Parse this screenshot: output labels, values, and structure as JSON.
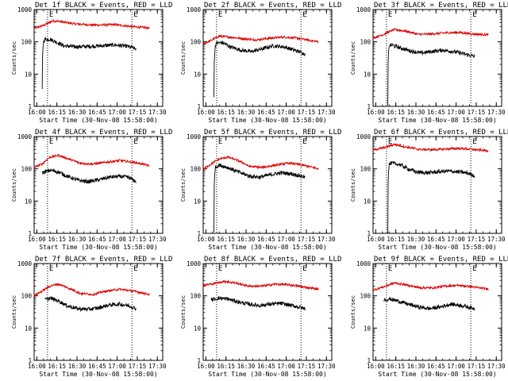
{
  "chart_data": [
    {
      "type": "line",
      "detector": "1f",
      "title": "Det 1f BLACK = Events, RED = LLD",
      "xlabel": "Start Time (30-Nov-08 15:58:00)",
      "ylabel": "Counts/sec",
      "x_ticks": [
        "16:00",
        "16:15",
        "16:30",
        "16:45",
        "17:00",
        "17:15",
        "17:30"
      ],
      "y_ticks": [
        "1",
        "10",
        "100",
        "1000"
      ],
      "xlim_min": [
        0,
        96
      ],
      "ylim": [
        1,
        1000
      ],
      "yscale": "log",
      "attenuator_marks": [
        {
          "label": "E",
          "t": 10
        },
        {
          "label": "E",
          "t": 73
        }
      ],
      "series": [
        {
          "name": "LLD",
          "color": "#dd0000",
          "start": 0,
          "end": 86,
          "x": [
            0,
            8,
            14,
            20,
            30,
            45,
            60,
            75,
            86
          ],
          "y": [
            260,
            330,
            450,
            420,
            360,
            330,
            340,
            290,
            270
          ]
        },
        {
          "name": "Events",
          "color": "#000000",
          "start": 6,
          "end": 76,
          "x": [
            6,
            7,
            8,
            12,
            16,
            22,
            30,
            40,
            50,
            60,
            70,
            76
          ],
          "y": [
            3,
            100,
            120,
            120,
            100,
            75,
            70,
            72,
            75,
            80,
            72,
            60
          ]
        }
      ]
    },
    {
      "type": "line",
      "detector": "2f",
      "title": "Det 2f BLACK = Events, RED = LLD",
      "xlabel": "Start Time (30-Nov-08 15:58:00)",
      "ylabel": "Counts/sec",
      "x_ticks": [
        "16:00",
        "16:15",
        "16:30",
        "16:45",
        "17:00",
        "17:15",
        "17:30"
      ],
      "y_ticks": [
        "1",
        "10",
        "100",
        "1000"
      ],
      "xlim_min": [
        0,
        96
      ],
      "ylim": [
        1,
        1000
      ],
      "yscale": "log",
      "attenuator_marks": [
        {
          "label": "E",
          "t": 10
        },
        {
          "label": "E",
          "t": 73
        }
      ],
      "series": [
        {
          "name": "LLD",
          "color": "#dd0000",
          "start": 0,
          "end": 86,
          "x": [
            0,
            6,
            12,
            20,
            30,
            40,
            50,
            60,
            70,
            80,
            86
          ],
          "y": [
            85,
            110,
            150,
            140,
            125,
            115,
            130,
            140,
            130,
            110,
            100
          ]
        },
        {
          "name": "Events",
          "color": "#000000",
          "start": 8,
          "end": 76,
          "x": [
            8,
            9,
            10,
            14,
            20,
            28,
            36,
            44,
            52,
            60,
            68,
            76
          ],
          "y": [
            2,
            75,
            90,
            95,
            70,
            55,
            50,
            60,
            75,
            70,
            55,
            42
          ]
        }
      ]
    },
    {
      "type": "line",
      "detector": "3f",
      "title": "Det 3f BLACK = Events, RED = LLD",
      "xlabel": "Start Time (30-Nov-08 15:58:00)",
      "ylabel": "Counts/sec",
      "x_ticks": [
        "16:00",
        "16:15",
        "16:30",
        "16:45",
        "17:00",
        "17:15",
        "17:30"
      ],
      "y_ticks": [
        "1",
        "10",
        "100",
        "1000"
      ],
      "xlim_min": [
        0,
        96
      ],
      "ylim": [
        1,
        1000
      ],
      "yscale": "log",
      "attenuator_marks": [
        {
          "label": "E",
          "t": 10
        },
        {
          "label": "E",
          "t": 73
        }
      ],
      "series": [
        {
          "name": "LLD",
          "color": "#dd0000",
          "start": 0,
          "end": 86,
          "x": [
            0,
            8,
            16,
            24,
            34,
            44,
            54,
            64,
            74,
            86
          ],
          "y": [
            130,
            170,
            240,
            215,
            170,
            175,
            190,
            195,
            175,
            165
          ]
        },
        {
          "name": "Events",
          "color": "#000000",
          "start": 11,
          "end": 76,
          "x": [
            11,
            12,
            14,
            20,
            28,
            36,
            44,
            52,
            60,
            68,
            76
          ],
          "y": [
            1,
            75,
            80,
            65,
            52,
            45,
            50,
            55,
            50,
            42,
            35
          ]
        }
      ]
    },
    {
      "type": "line",
      "detector": "4f",
      "title": "Det 4f BLACK = Events, RED = LLD",
      "xlabel": "Start Time (30-Nov-08 15:58:00)",
      "ylabel": "Counts/sec",
      "x_ticks": [
        "16:00",
        "16:15",
        "16:30",
        "16:45",
        "17:00",
        "17:15",
        "17:30"
      ],
      "y_ticks": [
        "1",
        "10",
        "100",
        "1000"
      ],
      "xlim_min": [
        0,
        96
      ],
      "ylim": [
        1,
        1000
      ],
      "yscale": "log",
      "attenuator_marks": [
        {
          "label": "E",
          "t": 10
        },
        {
          "label": "E",
          "t": 73
        }
      ],
      "series": [
        {
          "name": "LLD",
          "color": "#dd0000",
          "start": 0,
          "end": 86,
          "x": [
            0,
            6,
            12,
            18,
            26,
            34,
            44,
            54,
            64,
            74,
            86
          ],
          "y": [
            110,
            140,
            230,
            260,
            200,
            150,
            140,
            160,
            180,
            160,
            125
          ]
        },
        {
          "name": "Events",
          "color": "#000000",
          "start": 6,
          "end": 76,
          "x": [
            6,
            12,
            18,
            24,
            32,
            40,
            48,
            56,
            64,
            70,
            76
          ],
          "y": [
            75,
            90,
            80,
            60,
            45,
            40,
            45,
            55,
            58,
            55,
            40
          ]
        }
      ]
    },
    {
      "type": "line",
      "detector": "5f",
      "title": "Det 5f BLACK = Events, RED = LLD",
      "xlabel": "Start Time (30-Nov-08 15:58:00)",
      "ylabel": "Counts/sec",
      "x_ticks": [
        "16:00",
        "16:15",
        "16:30",
        "16:45",
        "17:00",
        "17:15",
        "17:30"
      ],
      "y_ticks": [
        "1",
        "10",
        "100",
        "1000"
      ],
      "xlim_min": [
        0,
        96
      ],
      "ylim": [
        1,
        1000
      ],
      "yscale": "log",
      "attenuator_marks": [
        {
          "label": "E",
          "t": 10
        },
        {
          "label": "E",
          "t": 73
        }
      ],
      "series": [
        {
          "name": "LLD",
          "color": "#dd0000",
          "start": 0,
          "end": 86,
          "x": [
            0,
            6,
            12,
            18,
            26,
            34,
            44,
            54,
            64,
            74,
            86
          ],
          "y": [
            95,
            140,
            200,
            230,
            180,
            120,
            110,
            130,
            150,
            130,
            100
          ]
        },
        {
          "name": "Events",
          "color": "#000000",
          "start": 8,
          "end": 76,
          "x": [
            8,
            9,
            12,
            18,
            26,
            34,
            42,
            50,
            58,
            66,
            76
          ],
          "y": [
            1,
            110,
            130,
            110,
            80,
            60,
            55,
            65,
            75,
            70,
            55
          ]
        }
      ]
    },
    {
      "type": "line",
      "detector": "6f",
      "title": "Det 6f BLACK = Events, RED = LLD",
      "xlabel": "Start Time (30-Nov-08 15:58:00)",
      "ylabel": "Counts/sec",
      "x_ticks": [
        "16:00",
        "16:15",
        "16:30",
        "16:45",
        "17:00",
        "17:15",
        "17:30"
      ],
      "y_ticks": [
        "1",
        "10",
        "100",
        "1000"
      ],
      "xlim_min": [
        0,
        96
      ],
      "ylim": [
        1,
        1000
      ],
      "yscale": "log",
      "attenuator_marks": [
        {
          "label": "E",
          "t": 10
        },
        {
          "label": "E",
          "t": 73
        }
      ],
      "series": [
        {
          "name": "LLD",
          "color": "#dd0000",
          "start": 0,
          "end": 86,
          "x": [
            0,
            8,
            16,
            24,
            34,
            44,
            54,
            64,
            74,
            86
          ],
          "y": [
            380,
            450,
            570,
            480,
            400,
            390,
            410,
            430,
            400,
            360
          ]
        },
        {
          "name": "Events",
          "color": "#000000",
          "start": 11,
          "end": 76,
          "x": [
            11,
            12,
            14,
            20,
            26,
            32,
            40,
            48,
            56,
            64,
            70,
            76
          ],
          "y": [
            1,
            140,
            150,
            135,
            100,
            80,
            75,
            80,
            85,
            80,
            75,
            60
          ]
        }
      ]
    },
    {
      "type": "line",
      "detector": "7f",
      "title": "Det 7f BLACK = Events, RED = LLD",
      "xlabel": "Start Time (30-Nov-08 15:58:00)",
      "ylabel": "Counts/sec",
      "x_ticks": [
        "16:00",
        "16:15",
        "16:30",
        "16:45",
        "17:00",
        "17:15",
        "17:30"
      ],
      "y_ticks": [
        "1",
        "10",
        "100",
        "1000"
      ],
      "xlim_min": [
        0,
        96
      ],
      "ylim": [
        1,
        1000
      ],
      "yscale": "log",
      "attenuator_marks": [
        {
          "label": "E",
          "t": 10
        },
        {
          "label": "E",
          "t": 73
        }
      ],
      "series": [
        {
          "name": "LLD",
          "color": "#dd0000",
          "start": 0,
          "end": 86,
          "x": [
            0,
            6,
            12,
            18,
            26,
            34,
            44,
            54,
            64,
            74,
            86
          ],
          "y": [
            100,
            140,
            200,
            230,
            170,
            120,
            110,
            140,
            160,
            140,
            110
          ]
        },
        {
          "name": "Events",
          "color": "#000000",
          "start": 8,
          "end": 76,
          "x": [
            8,
            12,
            18,
            24,
            32,
            40,
            48,
            56,
            64,
            70,
            76
          ],
          "y": [
            75,
            85,
            70,
            50,
            40,
            38,
            42,
            52,
            55,
            50,
            40
          ]
        }
      ]
    },
    {
      "type": "line",
      "detector": "8f",
      "title": "Det 8f BLACK = Events, RED = LLD",
      "xlabel": "Start Time (30-Nov-08 15:58:00)",
      "ylabel": "Counts/sec",
      "x_ticks": [
        "16:00",
        "16:15",
        "16:30",
        "16:45",
        "17:00",
        "17:15",
        "17:30"
      ],
      "y_ticks": [
        "1",
        "10",
        "100",
        "1000"
      ],
      "xlim_min": [
        0,
        96
      ],
      "ylim": [
        1,
        1000
      ],
      "yscale": "log",
      "attenuator_marks": [
        {
          "label": "E",
          "t": 10
        },
        {
          "label": "E",
          "t": 73
        }
      ],
      "series": [
        {
          "name": "LLD",
          "color": "#dd0000",
          "start": 0,
          "end": 86,
          "x": [
            0,
            8,
            16,
            24,
            34,
            44,
            54,
            64,
            74,
            86
          ],
          "y": [
            210,
            240,
            280,
            250,
            200,
            200,
            230,
            220,
            190,
            160
          ]
        },
        {
          "name": "Events",
          "color": "#000000",
          "start": 6,
          "end": 76,
          "x": [
            6,
            12,
            18,
            26,
            34,
            42,
            50,
            58,
            66,
            76
          ],
          "y": [
            75,
            85,
            80,
            65,
            55,
            50,
            55,
            58,
            50,
            40
          ]
        }
      ]
    },
    {
      "type": "line",
      "detector": "9f",
      "title": "Det 9f BLACK = Events, RED = LLD",
      "xlabel": "Start Time (30-Nov-08 15:58:00)",
      "ylabel": "Counts/sec",
      "x_ticks": [
        "16:00",
        "16:15",
        "16:30",
        "16:45",
        "17:00",
        "17:15",
        "17:30"
      ],
      "y_ticks": [
        "1",
        "10",
        "100",
        "1000"
      ],
      "xlim_min": [
        0,
        96
      ],
      "ylim": [
        1,
        1000
      ],
      "yscale": "log",
      "attenuator_marks": [
        {
          "label": "E",
          "t": 10
        },
        {
          "label": "E",
          "t": 73
        }
      ],
      "series": [
        {
          "name": "LLD",
          "color": "#dd0000",
          "start": 0,
          "end": 86,
          "x": [
            0,
            8,
            16,
            24,
            34,
            44,
            54,
            64,
            74,
            86
          ],
          "y": [
            150,
            190,
            250,
            220,
            180,
            175,
            200,
            210,
            190,
            160
          ]
        },
        {
          "name": "Events",
          "color": "#000000",
          "start": 8,
          "end": 76,
          "x": [
            8,
            12,
            18,
            26,
            34,
            42,
            50,
            58,
            66,
            76
          ],
          "y": [
            75,
            80,
            70,
            55,
            45,
            40,
            45,
            55,
            50,
            40
          ]
        }
      ]
    }
  ]
}
